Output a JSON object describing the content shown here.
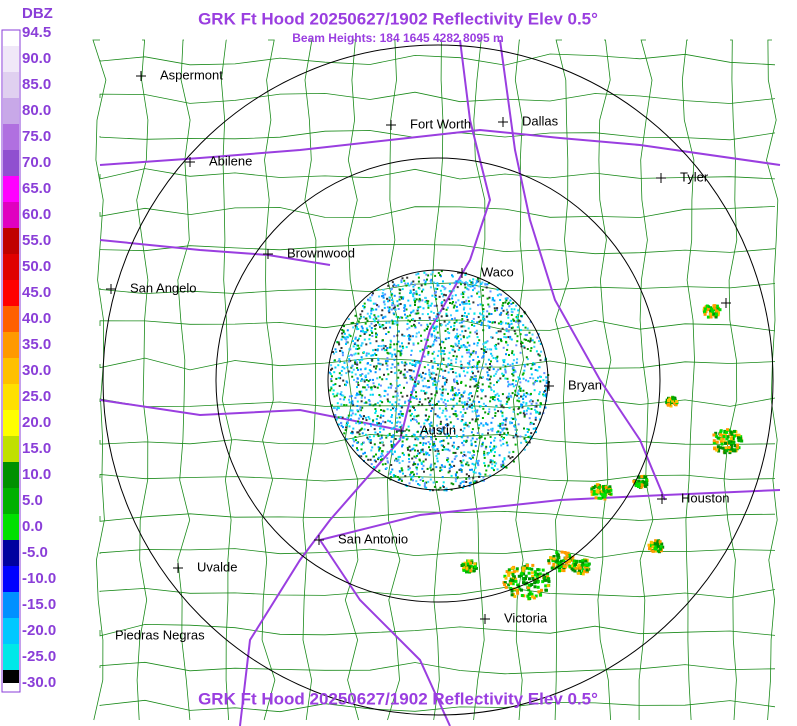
{
  "title": "GRK Ft Hood 20250627/1902 Reflectivity Elev 0.5°",
  "subtitle": "Beam Heights: 184 1645 4282 8095 m",
  "footer_title": "GRK Ft Hood 20250627/1902 Reflectivity Elev 0.5°",
  "scale": {
    "unit": "DBZ",
    "labels": [
      "94.5",
      "90.0",
      "85.0",
      "80.0",
      "75.0",
      "70.0",
      "65.0",
      "60.0",
      "55.0",
      "50.0",
      "45.0",
      "40.0",
      "35.0",
      "30.0",
      "25.0",
      "20.0",
      "15.0",
      "10.0",
      "5.0",
      "0.0",
      "-5.0",
      "-10.0",
      "-15.0",
      "-20.0",
      "-25.0",
      "-30.0"
    ]
  },
  "cities": [
    "Aspermont",
    "Fort Worth",
    "Dallas",
    "Abilene",
    "Tyler",
    "Brownwood",
    "Waco",
    "San Angelo",
    "Bryan",
    "Austin",
    "Houston",
    "San Antonio",
    "Uvalde",
    "Victoria",
    "Piedras Negras"
  ]
}
